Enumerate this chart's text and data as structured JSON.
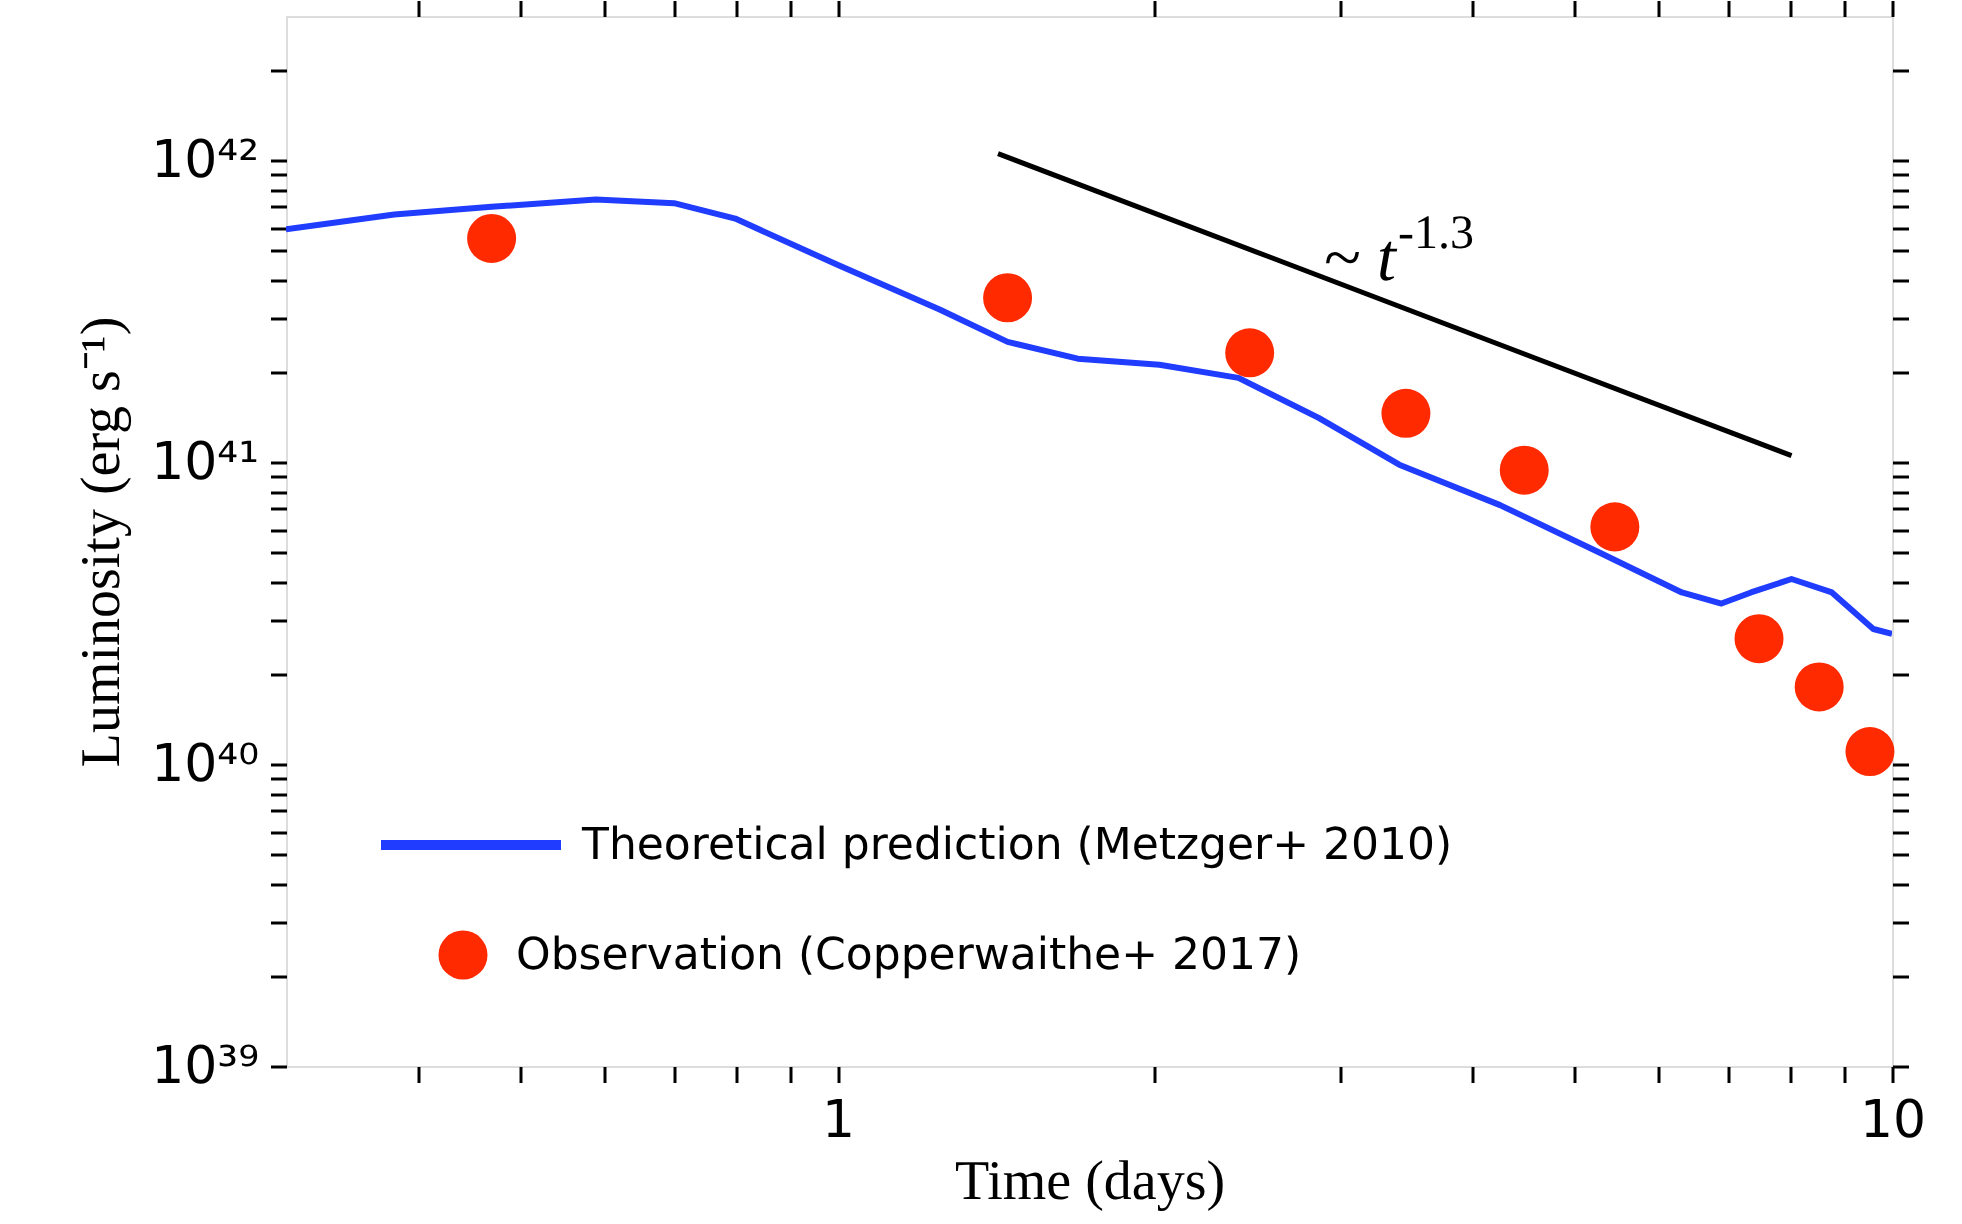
{
  "chart_data": {
    "type": "line",
    "xlabel": "Time (days)",
    "ylabel": "Luminosity (erg s⁻¹)",
    "log": "xy",
    "grid": false,
    "legend": "bottom left",
    "xlim": [
      0.3,
      10
    ],
    "ylim": [
      1e+39,
      3e+42
    ],
    "xticks": [
      {
        "value": 0.4,
        "label": null
      },
      {
        "value": 0.5,
        "label": null
      },
      {
        "value": 0.6,
        "label": null
      },
      {
        "value": 0.7,
        "label": null
      },
      {
        "value": 0.8,
        "label": null
      },
      {
        "value": 0.9,
        "label": null
      },
      1,
      {
        "value": 2,
        "label": null
      },
      {
        "value": 3,
        "label": null
      },
      {
        "value": 4,
        "label": null
      },
      {
        "value": 5,
        "label": null
      },
      {
        "value": 6,
        "label": null
      },
      {
        "value": 7,
        "label": null
      },
      {
        "value": 8,
        "label": null
      },
      {
        "value": 9,
        "label": null
      },
      10
    ],
    "yticks": [
      {
        "value": 1e+39,
        "label": "10³⁹"
      },
      {
        "value": 2e+39,
        "label": null
      },
      {
        "value": 3e+39,
        "label": null
      },
      {
        "value": 4e+39,
        "label": null
      },
      {
        "value": 5e+39,
        "label": null
      },
      {
        "value": 6e+39,
        "label": null
      },
      {
        "value": 7e+39,
        "label": null
      },
      {
        "value": 8e+39,
        "label": null
      },
      {
        "value": 9e+39,
        "label": null
      },
      {
        "value": 1e+40,
        "label": "10⁴⁰"
      },
      {
        "value": 2e+40,
        "label": null
      },
      {
        "value": 3e+40,
        "label": null
      },
      {
        "value": 4e+40,
        "label": null
      },
      {
        "value": 5e+40,
        "label": null
      },
      {
        "value": 6e+40,
        "label": null
      },
      {
        "value": 7e+40,
        "label": null
      },
      {
        "value": 8e+40,
        "label": null
      },
      {
        "value": 9e+40,
        "label": null
      },
      {
        "value": 1e+41,
        "label": "10⁴¹"
      },
      {
        "value": 2e+41,
        "label": null
      },
      {
        "value": 3e+41,
        "label": null
      },
      {
        "value": 4e+41,
        "label": null
      },
      {
        "value": 5e+41,
        "label": null
      },
      {
        "value": 6e+41,
        "label": null
      },
      {
        "value": 7e+41,
        "label": null
      },
      {
        "value": 8e+41,
        "label": null
      },
      {
        "value": 9e+41,
        "label": null
      },
      {
        "value": 1e+42,
        "label": "10⁴²"
      },
      {
        "value": 2e+42,
        "label": null
      }
    ],
    "annotations": [
      "~ t$^{-1.3}$"
    ],
    "series": [
      {
        "name": "Theoretical prediction (Metzger+ 2010)",
        "color": "#1f3cff",
        "line_style": "solid",
        "x": [
          0.3,
          0.38,
          0.47,
          0.59,
          0.7,
          0.8,
          1.0,
          1.25,
          1.45,
          1.69,
          2.02,
          2.4,
          2.86,
          3.41,
          4.25,
          5.29,
          6.32,
          6.89,
          7.35,
          8.03,
          8.77,
          9.6,
          10
        ],
        "values": [
          5.9e+41,
          6.6e+41,
          7e+41,
          7.4e+41,
          7.2e+41,
          6.4e+41,
          4.5e+41,
          3.2e+41,
          2.5e+41,
          2.2e+41,
          2.1e+41,
          1.9e+41,
          1.4e+41,
          9.8e+40,
          7.2e+40,
          5e+40,
          3.7e+40,
          3.4e+40,
          3.7e+40,
          4.1e+40,
          3.7e+40,
          2.8e+40,
          2.7e+40
        ]
      },
      {
        "name": "Observation (Copperwaithe+ 2017)",
        "type": "scatter",
        "marker": "circle",
        "color": "#ff2a00",
        "x": [
          0.47,
          1.45,
          2.46,
          3.46,
          4.48,
          5.46,
          7.48,
          8.53,
          9.53
        ],
        "values": [
          5.5e+41,
          3.5e+41,
          2.3e+41,
          1.45e+41,
          9.4e+40,
          6.1e+40,
          2.6e+40,
          1.8e+40,
          1.1e+40
        ]
      },
      {
        "type": "line",
        "color": "#000000",
        "line_style": "solid",
        "x": [
          1.42,
          8.03
        ],
        "values": [
          1.05e+42,
          1.05e+41
        ]
      }
    ]
  }
}
